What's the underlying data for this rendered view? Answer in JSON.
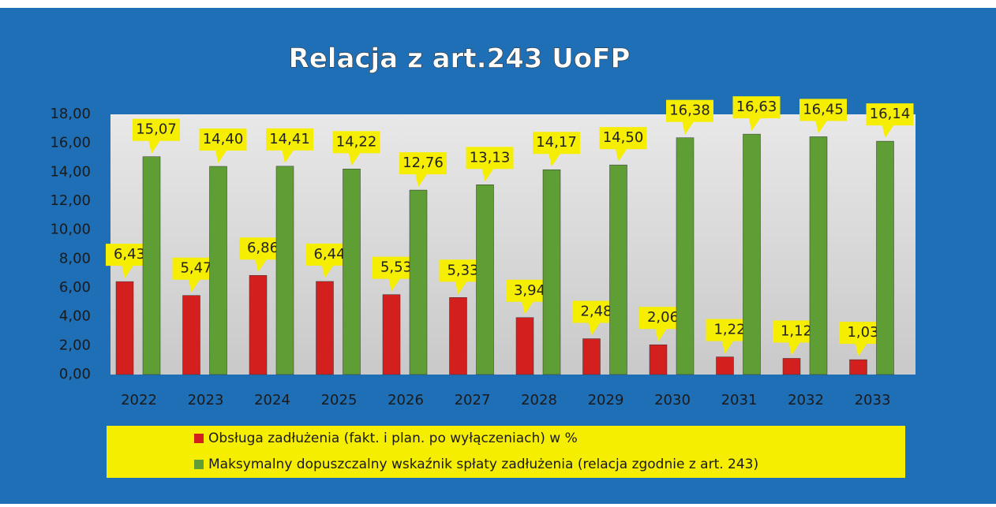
{
  "chart_data": {
    "type": "bar",
    "title": "Relacja z art.243 UoFP",
    "categories": [
      "2022",
      "2023",
      "2024",
      "2025",
      "2026",
      "2027",
      "2028",
      "2029",
      "2030",
      "2031",
      "2032",
      "2033"
    ],
    "series": [
      {
        "name": "Obsługa zadłużenia (fakt. i plan. po wyłączeniach) w %",
        "color": "#d41f1f",
        "values": [
          6.43,
          5.47,
          6.86,
          6.44,
          5.53,
          5.33,
          3.94,
          2.48,
          2.06,
          1.22,
          1.12,
          1.03
        ],
        "value_labels": [
          "6,43",
          "5,47",
          "6,86",
          "6,44",
          "5,53",
          "5,33",
          "3,94",
          "2,48",
          "2,06",
          "1,22",
          "1,12",
          "1,03"
        ]
      },
      {
        "name": "Maksymalny dopuszczalny wskaźnik spłaty  zadłużenia (relacja zgodnie z art. 243)",
        "color": "#5f9e35",
        "values": [
          15.07,
          14.4,
          14.41,
          14.22,
          12.76,
          13.13,
          14.17,
          14.5,
          16.38,
          16.63,
          16.45,
          16.14
        ],
        "value_labels": [
          "15,07",
          "14,40",
          "14,41",
          "14,22",
          "12,76",
          "13,13",
          "14,17",
          "14,50",
          "16,38",
          "16,63",
          "16,45",
          "16,14"
        ]
      }
    ],
    "ylim": [
      0,
      18
    ],
    "yticks": [
      {
        "value": 0,
        "label": "0,00"
      },
      {
        "value": 2,
        "label": "2,00"
      },
      {
        "value": 4,
        "label": "4,00"
      },
      {
        "value": 6,
        "label": "6,00"
      },
      {
        "value": 8,
        "label": "8,00"
      },
      {
        "value": 10,
        "label": "10,00"
      },
      {
        "value": 12,
        "label": "12,00"
      },
      {
        "value": 14,
        "label": "14,00"
      },
      {
        "value": 16,
        "label": "16,00"
      },
      {
        "value": 18,
        "label": "18,00"
      }
    ],
    "grid": false
  }
}
